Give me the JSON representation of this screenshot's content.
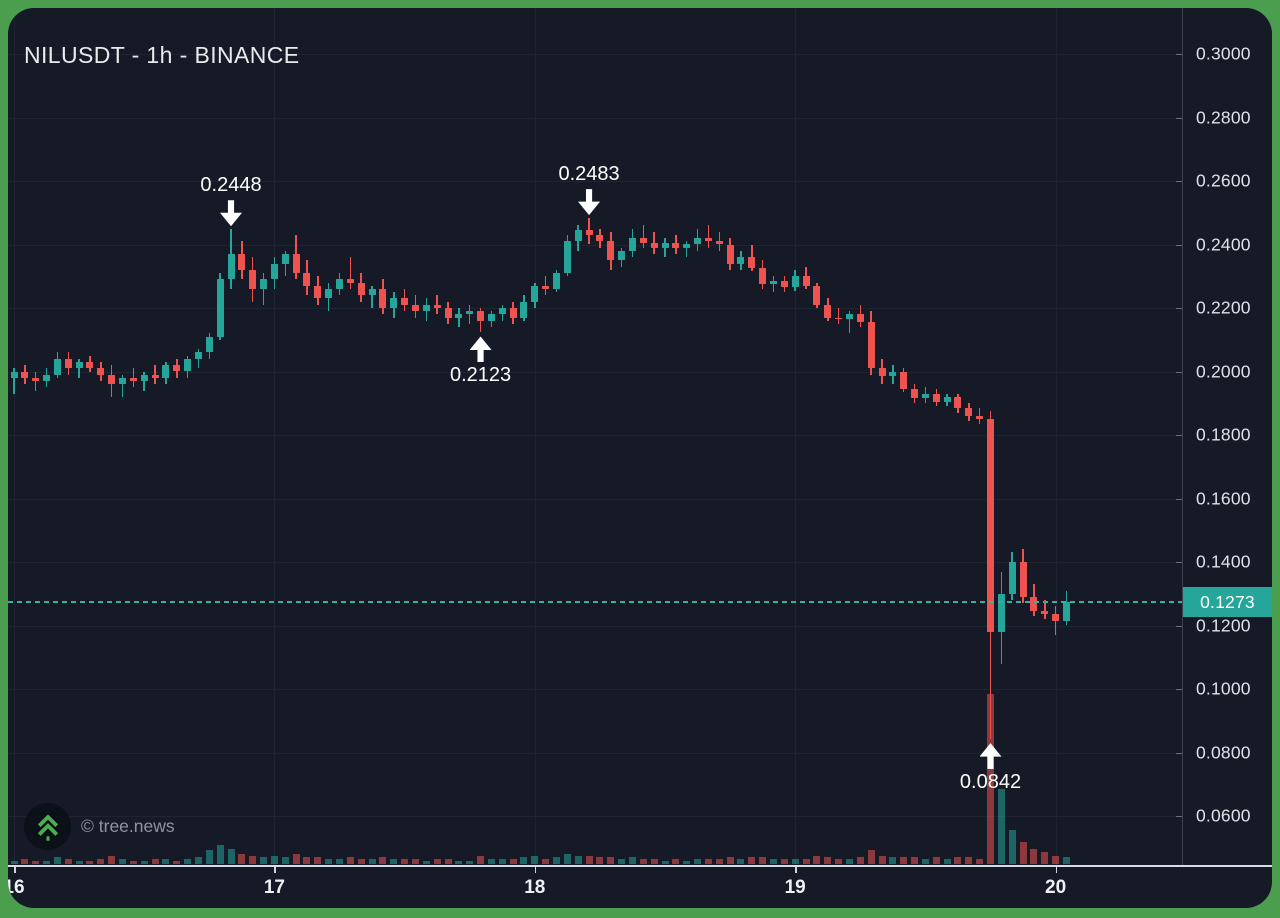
{
  "header": {
    "title": "NILUSDT - 1h - BINANCE"
  },
  "watermark": {
    "text": "© tree.news",
    "logo": "double-chevron-up-tree-icon"
  },
  "colors": {
    "frame_green": "#4a9e4e",
    "panel_bg": "#151a26",
    "bull": "#26a69a",
    "bear": "#ef5350",
    "price_line": "#35b0a2",
    "badge_bg": "#26a69a",
    "annotation_text": "#ffffff"
  },
  "chart_data": {
    "type": "candlestick",
    "title": "NILUSDT - 1h - BINANCE",
    "symbol": "NILUSDT",
    "interval": "1h",
    "exchange": "BINANCE",
    "legend_position": "none",
    "grid": true,
    "ylim": [
      0.0446,
      0.317
    ],
    "y_ticks": [
      0.3,
      0.28,
      0.26,
      0.24,
      0.22,
      0.2,
      0.18,
      0.16,
      0.14,
      0.12,
      0.1,
      0.08,
      0.06
    ],
    "x_ticks": [
      {
        "label": "16",
        "candle": 1
      },
      {
        "label": "17",
        "candle": 25
      },
      {
        "label": "18",
        "candle": 49
      },
      {
        "label": "19",
        "candle": 73
      },
      {
        "label": "20",
        "candle": 97
      }
    ],
    "price_line": {
      "value": 0.1273,
      "label": "0.1273"
    },
    "annotations": [
      {
        "label": "0.2448",
        "candle": 21,
        "direction": "down",
        "anchor": "high"
      },
      {
        "label": "0.2123",
        "candle": 44,
        "direction": "up",
        "anchor": "low"
      },
      {
        "label": "0.2483",
        "candle": 54,
        "direction": "down",
        "anchor": "high"
      },
      {
        "label": "0.0842",
        "candle": 91,
        "direction": "up",
        "anchor": "low"
      }
    ],
    "candles_format": [
      "open",
      "high",
      "low",
      "close",
      "volume_rel"
    ],
    "candles": [
      [
        0.2,
        0.203,
        0.196,
        0.198,
        3
      ],
      [
        0.198,
        0.201,
        0.193,
        0.2,
        2
      ],
      [
        0.2,
        0.202,
        0.196,
        0.198,
        3
      ],
      [
        0.198,
        0.2,
        0.194,
        0.197,
        2
      ],
      [
        0.197,
        0.201,
        0.195,
        0.199,
        2
      ],
      [
        0.199,
        0.206,
        0.198,
        0.204,
        4
      ],
      [
        0.204,
        0.206,
        0.199,
        0.201,
        3
      ],
      [
        0.201,
        0.204,
        0.198,
        0.203,
        2
      ],
      [
        0.203,
        0.205,
        0.2,
        0.201,
        2
      ],
      [
        0.201,
        0.203,
        0.197,
        0.199,
        3
      ],
      [
        0.199,
        0.202,
        0.192,
        0.196,
        5
      ],
      [
        0.196,
        0.199,
        0.192,
        0.198,
        3
      ],
      [
        0.198,
        0.201,
        0.195,
        0.197,
        2
      ],
      [
        0.197,
        0.2,
        0.194,
        0.199,
        2
      ],
      [
        0.199,
        0.202,
        0.196,
        0.198,
        3
      ],
      [
        0.198,
        0.203,
        0.196,
        0.202,
        3
      ],
      [
        0.202,
        0.204,
        0.198,
        0.2,
        2
      ],
      [
        0.2,
        0.205,
        0.198,
        0.204,
        3
      ],
      [
        0.204,
        0.207,
        0.201,
        0.206,
        4
      ],
      [
        0.206,
        0.212,
        0.204,
        0.211,
        8
      ],
      [
        0.211,
        0.231,
        0.21,
        0.229,
        11
      ],
      [
        0.229,
        0.2448,
        0.226,
        0.237,
        9
      ],
      [
        0.237,
        0.241,
        0.229,
        0.232,
        6
      ],
      [
        0.232,
        0.236,
        0.222,
        0.226,
        5
      ],
      [
        0.226,
        0.231,
        0.221,
        0.229,
        4
      ],
      [
        0.229,
        0.236,
        0.226,
        0.234,
        5
      ],
      [
        0.234,
        0.238,
        0.23,
        0.237,
        4
      ],
      [
        0.237,
        0.243,
        0.229,
        0.231,
        6
      ],
      [
        0.231,
        0.235,
        0.224,
        0.227,
        4
      ],
      [
        0.227,
        0.23,
        0.221,
        0.223,
        4
      ],
      [
        0.223,
        0.228,
        0.219,
        0.226,
        3
      ],
      [
        0.226,
        0.231,
        0.224,
        0.229,
        3
      ],
      [
        0.229,
        0.236,
        0.226,
        0.228,
        4
      ],
      [
        0.228,
        0.231,
        0.222,
        0.224,
        3
      ],
      [
        0.224,
        0.227,
        0.22,
        0.226,
        3
      ],
      [
        0.226,
        0.229,
        0.218,
        0.22,
        4
      ],
      [
        0.22,
        0.225,
        0.217,
        0.223,
        3
      ],
      [
        0.223,
        0.226,
        0.219,
        0.221,
        3
      ],
      [
        0.221,
        0.224,
        0.217,
        0.219,
        3
      ],
      [
        0.219,
        0.223,
        0.216,
        0.221,
        2
      ],
      [
        0.221,
        0.224,
        0.218,
        0.22,
        3
      ],
      [
        0.22,
        0.222,
        0.215,
        0.217,
        3
      ],
      [
        0.217,
        0.22,
        0.214,
        0.218,
        2
      ],
      [
        0.218,
        0.221,
        0.215,
        0.219,
        2
      ],
      [
        0.219,
        0.22,
        0.2123,
        0.216,
        5
      ],
      [
        0.216,
        0.219,
        0.214,
        0.218,
        3
      ],
      [
        0.218,
        0.221,
        0.216,
        0.22,
        3
      ],
      [
        0.22,
        0.222,
        0.215,
        0.217,
        3
      ],
      [
        0.217,
        0.224,
        0.216,
        0.222,
        4
      ],
      [
        0.222,
        0.228,
        0.22,
        0.227,
        5
      ],
      [
        0.227,
        0.23,
        0.224,
        0.226,
        3
      ],
      [
        0.226,
        0.232,
        0.225,
        0.231,
        4
      ],
      [
        0.231,
        0.243,
        0.23,
        0.241,
        6
      ],
      [
        0.241,
        0.246,
        0.238,
        0.2445,
        5
      ],
      [
        0.2445,
        0.2483,
        0.24,
        0.243,
        5
      ],
      [
        0.243,
        0.245,
        0.239,
        0.241,
        4
      ],
      [
        0.241,
        0.244,
        0.232,
        0.235,
        4
      ],
      [
        0.235,
        0.239,
        0.233,
        0.238,
        3
      ],
      [
        0.238,
        0.245,
        0.236,
        0.242,
        4
      ],
      [
        0.242,
        0.246,
        0.239,
        0.2405,
        3
      ],
      [
        0.2405,
        0.244,
        0.237,
        0.239,
        3
      ],
      [
        0.239,
        0.242,
        0.236,
        0.2405,
        2
      ],
      [
        0.2405,
        0.243,
        0.237,
        0.239,
        3
      ],
      [
        0.239,
        0.241,
        0.236,
        0.2402,
        2
      ],
      [
        0.2402,
        0.245,
        0.238,
        0.242,
        3
      ],
      [
        0.242,
        0.246,
        0.239,
        0.241,
        3
      ],
      [
        0.241,
        0.244,
        0.238,
        0.24,
        3
      ],
      [
        0.24,
        0.242,
        0.232,
        0.234,
        4
      ],
      [
        0.234,
        0.238,
        0.232,
        0.236,
        3
      ],
      [
        0.236,
        0.24,
        0.2315,
        0.2325,
        4
      ],
      [
        0.2325,
        0.235,
        0.226,
        0.2275,
        4
      ],
      [
        0.2275,
        0.23,
        0.225,
        0.2285,
        3
      ],
      [
        0.2285,
        0.23,
        0.225,
        0.2265,
        3
      ],
      [
        0.2265,
        0.232,
        0.2255,
        0.23,
        3
      ],
      [
        0.23,
        0.233,
        0.226,
        0.227,
        3
      ],
      [
        0.227,
        0.228,
        0.22,
        0.221,
        5
      ],
      [
        0.221,
        0.223,
        0.216,
        0.217,
        4
      ],
      [
        0.217,
        0.22,
        0.215,
        0.2165,
        3
      ],
      [
        0.2165,
        0.219,
        0.212,
        0.218,
        3
      ],
      [
        0.218,
        0.221,
        0.214,
        0.2155,
        4
      ],
      [
        0.2155,
        0.219,
        0.199,
        0.201,
        8
      ],
      [
        0.201,
        0.204,
        0.196,
        0.1985,
        5
      ],
      [
        0.1985,
        0.202,
        0.196,
        0.2,
        4
      ],
      [
        0.2,
        0.201,
        0.1935,
        0.1945,
        4
      ],
      [
        0.1945,
        0.196,
        0.19,
        0.1915,
        4
      ],
      [
        0.1915,
        0.195,
        0.19,
        0.193,
        3
      ],
      [
        0.193,
        0.1945,
        0.189,
        0.1905,
        4
      ],
      [
        0.1905,
        0.193,
        0.189,
        0.192,
        3
      ],
      [
        0.192,
        0.193,
        0.187,
        0.1885,
        4
      ],
      [
        0.1885,
        0.19,
        0.1845,
        0.186,
        4
      ],
      [
        0.186,
        0.1885,
        0.1835,
        0.185,
        3
      ],
      [
        0.185,
        0.1875,
        0.0842,
        0.118,
        100
      ],
      [
        0.118,
        0.137,
        0.108,
        0.13,
        44
      ],
      [
        0.13,
        0.143,
        0.128,
        0.14,
        20
      ],
      [
        0.14,
        0.144,
        0.127,
        0.129,
        13
      ],
      [
        0.129,
        0.133,
        0.123,
        0.1245,
        9
      ],
      [
        0.1245,
        0.128,
        0.122,
        0.1235,
        7
      ],
      [
        0.1235,
        0.126,
        0.117,
        0.1215,
        5
      ],
      [
        0.1215,
        0.131,
        0.12,
        0.1273,
        4
      ]
    ]
  }
}
